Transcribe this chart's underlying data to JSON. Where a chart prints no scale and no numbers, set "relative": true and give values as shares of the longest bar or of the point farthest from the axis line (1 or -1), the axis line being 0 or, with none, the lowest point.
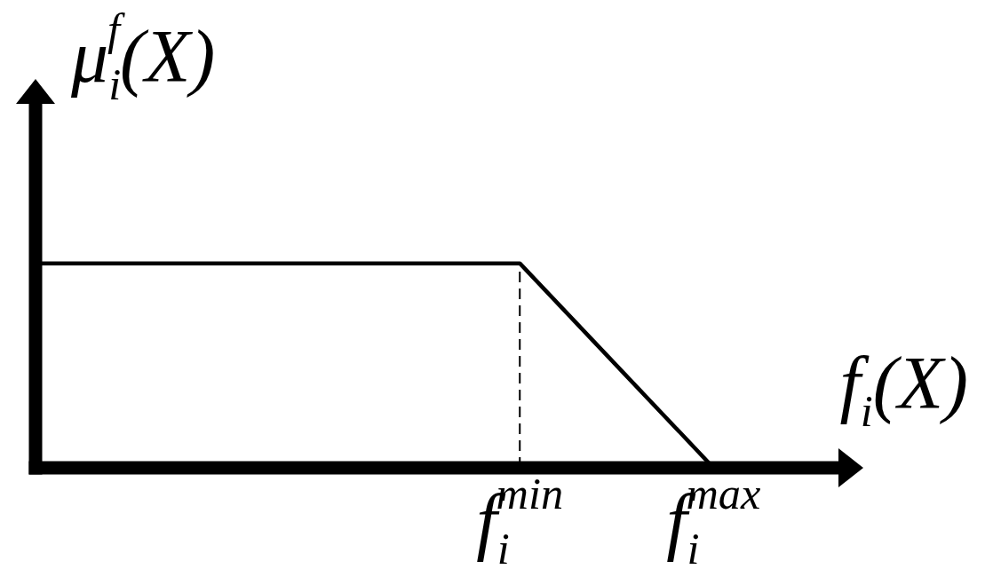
{
  "chart_data": {
    "type": "line",
    "xlabel": "f$_{i}$(X)",
    "ylabel": "μ$_{i}$$^{f}$(X)",
    "categories": [
      null,
      null,
      null,
      null,
      null,
      "f$_{i}$$^{min}$",
      null,
      "f$_{i}$$^{max}$"
    ],
    "values": [
      1,
      1,
      1,
      1,
      1,
      1,
      0.5,
      0
    ],
    "color": "#000000",
    "relative": true,
    "ref_lines": [
      {
        "axis": "x",
        "value": "f$_{i}$$^{min}$",
        "color": "#000000",
        "line_style": "dashed"
      }
    ],
    "marker": "none",
    "line_style": "solid"
  }
}
